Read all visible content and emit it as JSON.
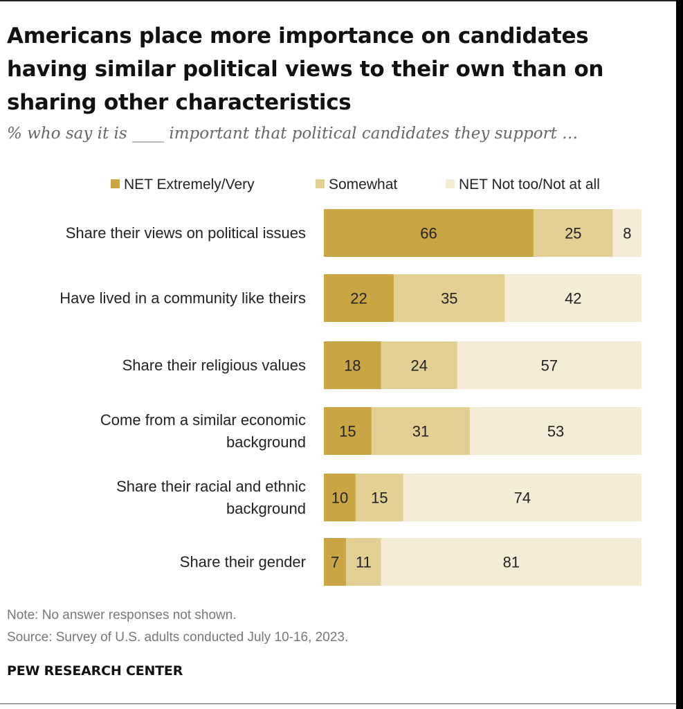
{
  "title": "Americans place more importance on candidates having similar political views to their own than on sharing other characteristics",
  "subtitle": "% who say it is ____ important that political candidates they support …",
  "note": "Note: No answer responses not shown.",
  "source": "Source: Survey of U.S. adults conducted July 10-16, 2023.",
  "organization": "PEW RESEARCH CENTER",
  "chart_data": {
    "type": "bar",
    "orientation": "horizontal",
    "stacked": true,
    "legend_position": "top",
    "categories": [
      "Share their views on political issues",
      "Have lived in a community like theirs",
      "Share their religious values",
      "Come from a similar economic background",
      "Share their racial and ethnic background",
      "Share their gender"
    ],
    "category_label_lines": [
      [
        "Share their views on political issues"
      ],
      [
        "Have lived in a community like theirs"
      ],
      [
        "Share their religious values"
      ],
      [
        "Come from a similar economic",
        "background"
      ],
      [
        "Share their racial and ethnic",
        "background"
      ],
      [
        "Share their gender"
      ]
    ],
    "series": [
      {
        "name": "NET Extremely/Very",
        "color": "#c9a544",
        "values": [
          66,
          22,
          18,
          15,
          10,
          7
        ]
      },
      {
        "name": "Somewhat",
        "color": "#e2cf93",
        "values": [
          25,
          35,
          24,
          31,
          15,
          11
        ]
      },
      {
        "name": "NET Not too/Not at all",
        "color": "#f4ecd7",
        "values": [
          8,
          42,
          57,
          53,
          74,
          81
        ]
      }
    ],
    "xlim": [
      0,
      100
    ]
  }
}
